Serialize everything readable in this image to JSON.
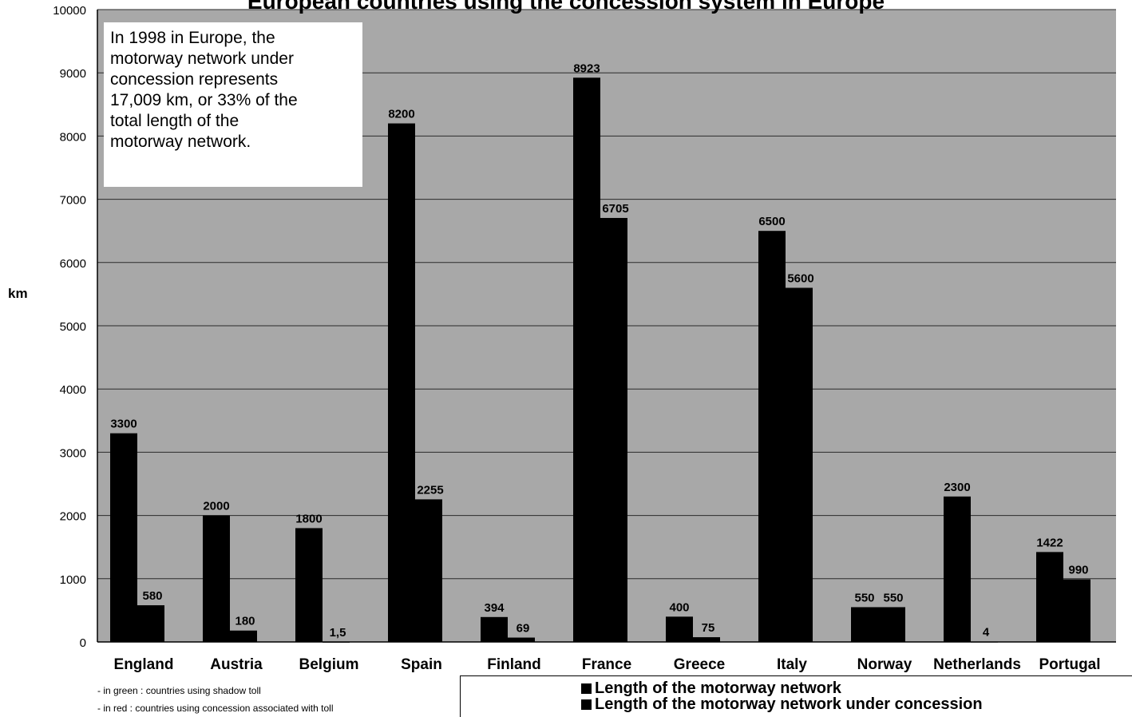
{
  "page": {
    "title": "European countries using the concession system in Europe",
    "ylabel": "km",
    "info_box": [
      "In 1998 in Europe, the",
      "motorway network under",
      "concession represents",
      "17,009 km, or 33% of the",
      "total length of the",
      "motorway network."
    ],
    "notes": [
      "- in green : countries using shadow toll",
      "- in red : countries using concession associated with toll"
    ],
    "legend": [
      "Length of the motorway network",
      "Length of the motorway network under concession"
    ]
  },
  "colors": {
    "plot_bg": "#a8a8a8",
    "bar": "#000000",
    "grid": "#2a2a2a",
    "text": "#000000"
  },
  "chart_data": {
    "type": "bar",
    "title": "European countries using the concession system in Europe",
    "xlabel": "",
    "ylabel": "km",
    "ylim": [
      0,
      10000
    ],
    "yticks": [
      "0",
      "1000",
      "2000",
      "3000",
      "4000",
      "5000",
      "6000",
      "7000",
      "8000",
      "9000",
      "10000"
    ],
    "grid": true,
    "legend_position": "bottom",
    "categories": [
      "England",
      "Austria",
      "Belgium",
      "Spain",
      "Finland",
      "France",
      "Greece",
      "Italy",
      "Norway",
      "Netherlands",
      "Portugal"
    ],
    "series": [
      {
        "name": "Length of the motorway network",
        "values": [
          3300,
          2000,
          1800,
          8200,
          394,
          8923,
          400,
          6500,
          550,
          2300,
          1422
        ],
        "labels": [
          "3300",
          "2000",
          "1800",
          "8200",
          "394",
          "8923",
          "400",
          "6500",
          "550",
          "2300",
          "1422"
        ]
      },
      {
        "name": "Length of the motorway network under concession",
        "values": [
          580,
          180,
          1.5,
          2255,
          69,
          6705,
          75,
          5600,
          550,
          4,
          990
        ],
        "labels": [
          "580",
          "180",
          "1,5",
          "2255",
          "69",
          "6705",
          "75",
          "5600",
          "550",
          "4",
          "990"
        ]
      }
    ]
  }
}
